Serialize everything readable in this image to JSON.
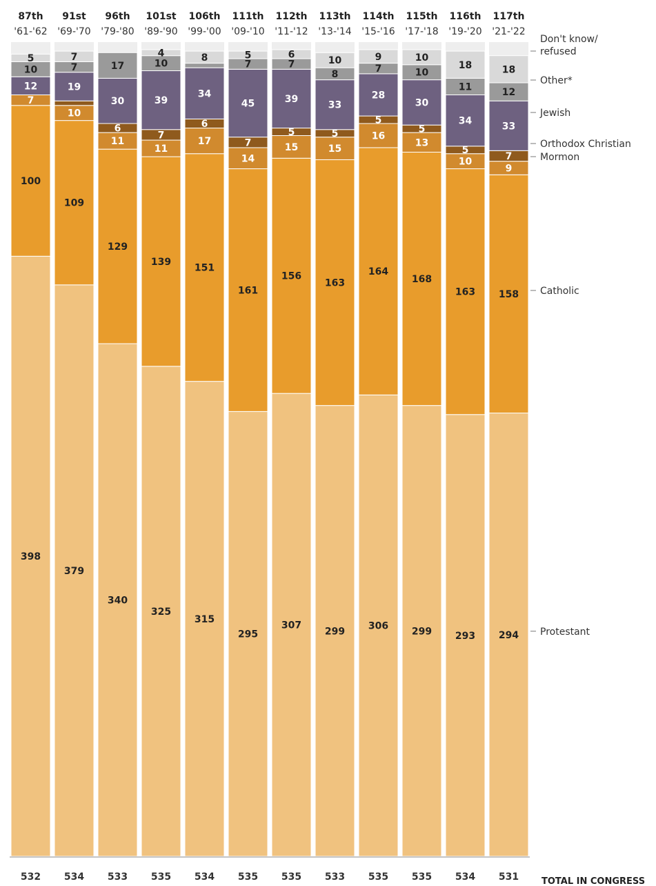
{
  "chart_data": {
    "type": "bar",
    "stacked": true,
    "categories": [
      "87th",
      "91st",
      "96th",
      "101st",
      "106th",
      "111th",
      "112th",
      "113th",
      "114th",
      "115th",
      "116th",
      "117th"
    ],
    "years": [
      "'61-'62",
      "'69-'70",
      "'79-'80",
      "'89-'90",
      "'99-'00",
      "'09-'10",
      "'11-'12",
      "'13-'14",
      "'15-'16",
      "'17-'18",
      "'19-'20",
      "'21-'22"
    ],
    "totals": [
      532,
      534,
      533,
      535,
      534,
      535,
      535,
      533,
      535,
      535,
      534,
      531
    ],
    "totals_label": "TOTAL IN CONGRESS",
    "series": [
      {
        "name": "Protestant",
        "color": "#f0c27f",
        "text_color": "#222222",
        "values": [
          398,
          379,
          340,
          325,
          315,
          295,
          307,
          299,
          306,
          299,
          293,
          294
        ]
      },
      {
        "name": "Catholic",
        "color": "#e89c2c",
        "text_color": "#222222",
        "values": [
          100,
          109,
          129,
          139,
          151,
          161,
          156,
          163,
          164,
          168,
          163,
          158
        ]
      },
      {
        "name": "Mormon",
        "color": "#d18a2e",
        "text_color": "#ffffff",
        "values": [
          7,
          10,
          11,
          11,
          17,
          14,
          15,
          15,
          16,
          13,
          10,
          9
        ]
      },
      {
        "name": "Orthodox Christian",
        "color": "#8f5a1d",
        "text_color": "#ffffff",
        "values": [
          0,
          3,
          6,
          7,
          6,
          7,
          5,
          5,
          5,
          5,
          5,
          7
        ]
      },
      {
        "name": "Jewish",
        "color": "#6e6180",
        "text_color": "#ffffff",
        "values": [
          12,
          19,
          30,
          39,
          34,
          45,
          39,
          33,
          28,
          30,
          34,
          33
        ]
      },
      {
        "name": "Other*",
        "color": "#9a9a9a",
        "text_color": "#222222",
        "values": [
          10,
          7,
          17,
          10,
          3,
          7,
          7,
          8,
          7,
          10,
          11,
          12
        ]
      },
      {
        "name": "Don't know/refused",
        "color": "#d9d9d9",
        "text_color": "#222222",
        "values": [
          5,
          7,
          0,
          4,
          8,
          5,
          6,
          10,
          9,
          10,
          18,
          18
        ]
      }
    ],
    "hidden_labels": [
      [
        false,
        false,
        false,
        false,
        false,
        false,
        false,
        false,
        false,
        false,
        false,
        false
      ],
      [
        false,
        false,
        false,
        false,
        false,
        false,
        false,
        false,
        false,
        false,
        false,
        false
      ],
      [
        false,
        false,
        false,
        false,
        false,
        false,
        false,
        false,
        false,
        false,
        false,
        false
      ],
      [
        false,
        true,
        false,
        false,
        false,
        false,
        false,
        false,
        false,
        false,
        false,
        false
      ],
      [
        false,
        false,
        false,
        false,
        false,
        false,
        false,
        false,
        false,
        false,
        false,
        false
      ],
      [
        false,
        false,
        false,
        false,
        true,
        false,
        false,
        false,
        false,
        false,
        false,
        false
      ],
      [
        false,
        false,
        false,
        false,
        false,
        false,
        false,
        false,
        false,
        false,
        false,
        false
      ]
    ],
    "legend_lines": [
      [
        "Don't know/",
        "refused"
      ],
      [
        "Other*"
      ],
      [
        "Jewish"
      ],
      [
        "Orthodox Christian"
      ],
      [
        "Mormon"
      ],
      [
        "Catholic"
      ],
      [
        "Protestant"
      ]
    ],
    "legend": "right",
    "grid": false
  }
}
